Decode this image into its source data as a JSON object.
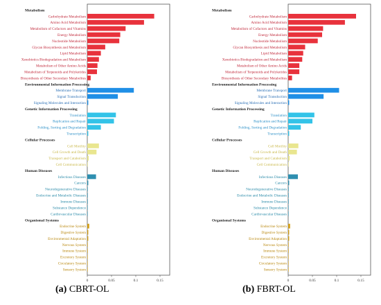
{
  "colors": {
    "Metabolism": "#e8323c",
    "Environmental Information Processing": "#1f8fe6",
    "Genetic Information Processing": "#33c3e8",
    "Cellular Processes": "#e9e68f",
    "Human Diseases": "#2e8fb0",
    "Organismal Systems": "#d4a017"
  },
  "label_colors": {
    "Metabolism": "#c0283a",
    "Environmental Information Processing": "#2b6fb5",
    "Genetic Information Processing": "#2b8fc7",
    "Cellular Processes": "#c9b84a",
    "Human Diseases": "#2a8aa8",
    "Organismal Systems": "#b8860b"
  },
  "chart_data": [
    {
      "type": "bar",
      "orientation": "horizontal",
      "caption_id": "(a)",
      "caption_text": " CBRT-OL",
      "xlim": [
        0,
        0.15
      ],
      "x_ticks": [
        "0",
        "0.05",
        "0.1",
        "0.15"
      ],
      "grid": false,
      "groups": [
        {
          "name": "Metabolism",
          "items": [
            {
              "label": "Carbohydrate Metabolism",
              "value": 0.138
            },
            {
              "label": "Amino Acid Metabolism",
              "value": 0.117
            },
            {
              "label": "Metabolism of Cofactors and Vitamins",
              "value": 0.079
            },
            {
              "label": "Energy Metabolism",
              "value": 0.068
            },
            {
              "label": "Nucleotide Metabolism",
              "value": 0.066
            },
            {
              "label": "Glycan Biosynthesis and Metabolism",
              "value": 0.037
            },
            {
              "label": "Lipid Metabolism",
              "value": 0.028
            },
            {
              "label": "Xenobiotics Biodegradation and Metabolism",
              "value": 0.024
            },
            {
              "label": "Metabolism of Other Amino Acids",
              "value": 0.021
            },
            {
              "label": "Metabolism of Terpenoids and Polyketides",
              "value": 0.02
            },
            {
              "label": "Biosynthesis of Other Secondary Metabolites",
              "value": 0.007
            }
          ]
        },
        {
          "name": "Environmental Information Processing",
          "items": [
            {
              "label": "Membrane Transport",
              "value": 0.096
            },
            {
              "label": "Signal Transduction",
              "value": 0.063
            },
            {
              "label": "Signaling Molecules and Interaction",
              "value": 0.002
            }
          ]
        },
        {
          "name": "Genetic Information Processing",
          "items": [
            {
              "label": "Translation",
              "value": 0.059
            },
            {
              "label": "Replication and Repair",
              "value": 0.055
            },
            {
              "label": "Folding, Sorting and Degradation",
              "value": 0.028
            },
            {
              "label": "Transcription",
              "value": 0.002
            }
          ]
        },
        {
          "name": "Cellular Processes",
          "items": [
            {
              "label": "Cell Motility",
              "value": 0.024
            },
            {
              "label": "Cell Growth and Death",
              "value": 0.019
            },
            {
              "label": "Transport and Catabolism",
              "value": 0.003
            },
            {
              "label": "Cell Communication",
              "value": 0.001
            }
          ]
        },
        {
          "name": "Human Diseases",
          "items": [
            {
              "label": "Infectious Diseases",
              "value": 0.018
            },
            {
              "label": "Cancers",
              "value": 0.002
            },
            {
              "label": "Neurodegenerative Diseases",
              "value": 0.001
            },
            {
              "label": "Endocrine and Metabolic Diseases",
              "value": 0.001
            },
            {
              "label": "Immune Diseases",
              "value": 0.001
            },
            {
              "label": "Substance Dependence",
              "value": 0.0005
            },
            {
              "label": "Cardiovascular Diseases",
              "value": 0.0005
            }
          ]
        },
        {
          "name": "Organismal Systems",
          "items": [
            {
              "label": "Endocrine System",
              "value": 0.004
            },
            {
              "label": "Digestive System",
              "value": 0.002
            },
            {
              "label": "Environmental Adaptation",
              "value": 0.002
            },
            {
              "label": "Nervous System",
              "value": 0.001
            },
            {
              "label": "Immune System",
              "value": 0.001
            },
            {
              "label": "Excretory System",
              "value": 0.0005
            },
            {
              "label": "Circulatory System",
              "value": 0.0005
            },
            {
              "label": "Sensory System",
              "value": 0.0003
            }
          ]
        }
      ]
    },
    {
      "type": "bar",
      "orientation": "horizontal",
      "caption_id": "(b)",
      "caption_text": " FBRT-OL",
      "xlim": [
        0,
        0.15
      ],
      "x_ticks": [
        "0",
        "0.05",
        "0.1",
        "0.15"
      ],
      "grid": false,
      "groups": [
        {
          "name": "Metabolism",
          "items": [
            {
              "label": "Carbohydrate Metabolism",
              "value": 0.14
            },
            {
              "label": "Amino Acid Metabolism",
              "value": 0.117
            },
            {
              "label": "Metabolism of Cofactors and Vitamins",
              "value": 0.072
            },
            {
              "label": "Energy Metabolism",
              "value": 0.07
            },
            {
              "label": "Nucleotide Metabolism",
              "value": 0.061
            },
            {
              "label": "Glycan Biosynthesis and Metabolism",
              "value": 0.035
            },
            {
              "label": "Lipid Metabolism",
              "value": 0.031
            },
            {
              "label": "Xenobiotics Biodegradation and Metabolism",
              "value": 0.029
            },
            {
              "label": "Metabolism of Other Amino Acids",
              "value": 0.023
            },
            {
              "label": "Metabolism of Terpenoids and Polyketides",
              "value": 0.023
            },
            {
              "label": "Biosynthesis of Other Secondary Metabolites",
              "value": 0.008
            }
          ]
        },
        {
          "name": "Environmental Information Processing",
          "items": [
            {
              "label": "Membrane Transport",
              "value": 0.105
            },
            {
              "label": "Signal Transduction",
              "value": 0.073
            },
            {
              "label": "Signaling Molecules and Interaction",
              "value": 0.002
            }
          ]
        },
        {
          "name": "Genetic Information Processing",
          "items": [
            {
              "label": "Translation",
              "value": 0.054
            },
            {
              "label": "Replication and Repair",
              "value": 0.05
            },
            {
              "label": "Folding, Sorting and Degradation",
              "value": 0.026
            },
            {
              "label": "Transcription",
              "value": 0.002
            }
          ]
        },
        {
          "name": "Cellular Processes",
          "items": [
            {
              "label": "Cell Motility",
              "value": 0.021
            },
            {
              "label": "Cell Growth and Death",
              "value": 0.018
            },
            {
              "label": "Transport and Catabolism",
              "value": 0.003
            },
            {
              "label": "Cell Communication",
              "value": 0.001
            }
          ]
        },
        {
          "name": "Human Diseases",
          "items": [
            {
              "label": "Infectious Diseases",
              "value": 0.02
            },
            {
              "label": "Cancers",
              "value": 0.002
            },
            {
              "label": "Neurodegenerative Diseases",
              "value": 0.001
            },
            {
              "label": "Endocrine and Metabolic Diseases",
              "value": 0.001
            },
            {
              "label": "Immune Diseases",
              "value": 0.001
            },
            {
              "label": "Substance Dependence",
              "value": 0.0005
            },
            {
              "label": "Cardiovascular Diseases",
              "value": 0.0005
            }
          ]
        },
        {
          "name": "Organismal Systems",
          "items": [
            {
              "label": "Endocrine System",
              "value": 0.004
            },
            {
              "label": "Digestive System",
              "value": 0.002
            },
            {
              "label": "Environmental Adaptation",
              "value": 0.002
            },
            {
              "label": "Nervous System",
              "value": 0.001
            },
            {
              "label": "Immune System",
              "value": 0.001
            },
            {
              "label": "Excretory System",
              "value": 0.0005
            },
            {
              "label": "Circulatory System",
              "value": 0.0005
            },
            {
              "label": "Sensory System",
              "value": 0.0003
            }
          ]
        }
      ]
    }
  ]
}
